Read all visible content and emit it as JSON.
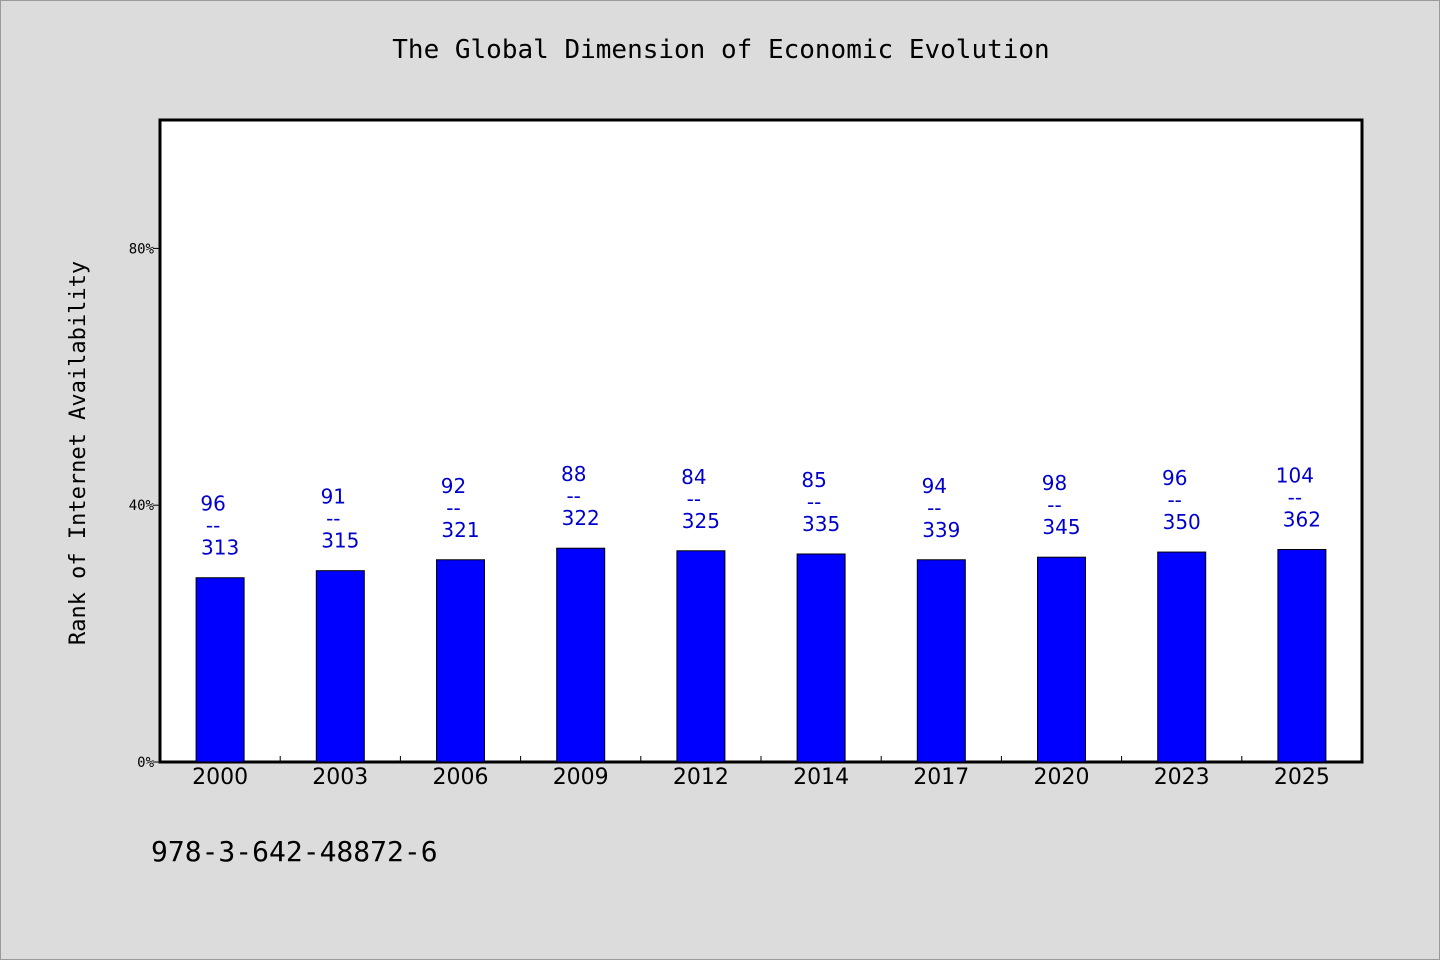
{
  "chart_data": {
    "type": "bar",
    "title": "The Global Dimension of Economic Evolution",
    "xlabel": "",
    "ylabel": "Rank of Internet Availability",
    "categories": [
      "2000",
      "2003",
      "2006",
      "2009",
      "2012",
      "2014",
      "2017",
      "2020",
      "2023",
      "2025"
    ],
    "values": [
      0.287,
      0.298,
      0.315,
      0.333,
      0.329,
      0.324,
      0.315,
      0.319,
      0.327,
      0.331
    ],
    "labels": [
      {
        "top": "96",
        "sep": "--",
        "bottom": "313"
      },
      {
        "top": "91",
        "sep": "--",
        "bottom": "315"
      },
      {
        "top": "92",
        "sep": "--",
        "bottom": "321"
      },
      {
        "top": "88",
        "sep": "--",
        "bottom": "322"
      },
      {
        "top": "84",
        "sep": "--",
        "bottom": "325"
      },
      {
        "top": "85",
        "sep": "--",
        "bottom": "335"
      },
      {
        "top": "94",
        "sep": "--",
        "bottom": "339"
      },
      {
        "top": "98",
        "sep": "--",
        "bottom": "345"
      },
      {
        "top": "96",
        "sep": "--",
        "bottom": "350"
      },
      {
        "top": "104",
        "sep": "--",
        "bottom": "362"
      }
    ],
    "ylim": [
      0,
      1.0
    ],
    "yticks": [
      {
        "value": 0.0,
        "label": "0%"
      },
      {
        "value": 0.4,
        "label": "40%"
      },
      {
        "value": 0.8,
        "label": "80%"
      }
    ],
    "bar_color": "#0000ff",
    "label_color": "#0000cc",
    "grid": false,
    "legend": "none"
  },
  "footer": {
    "isbn": "978-3-642-48872-6"
  }
}
